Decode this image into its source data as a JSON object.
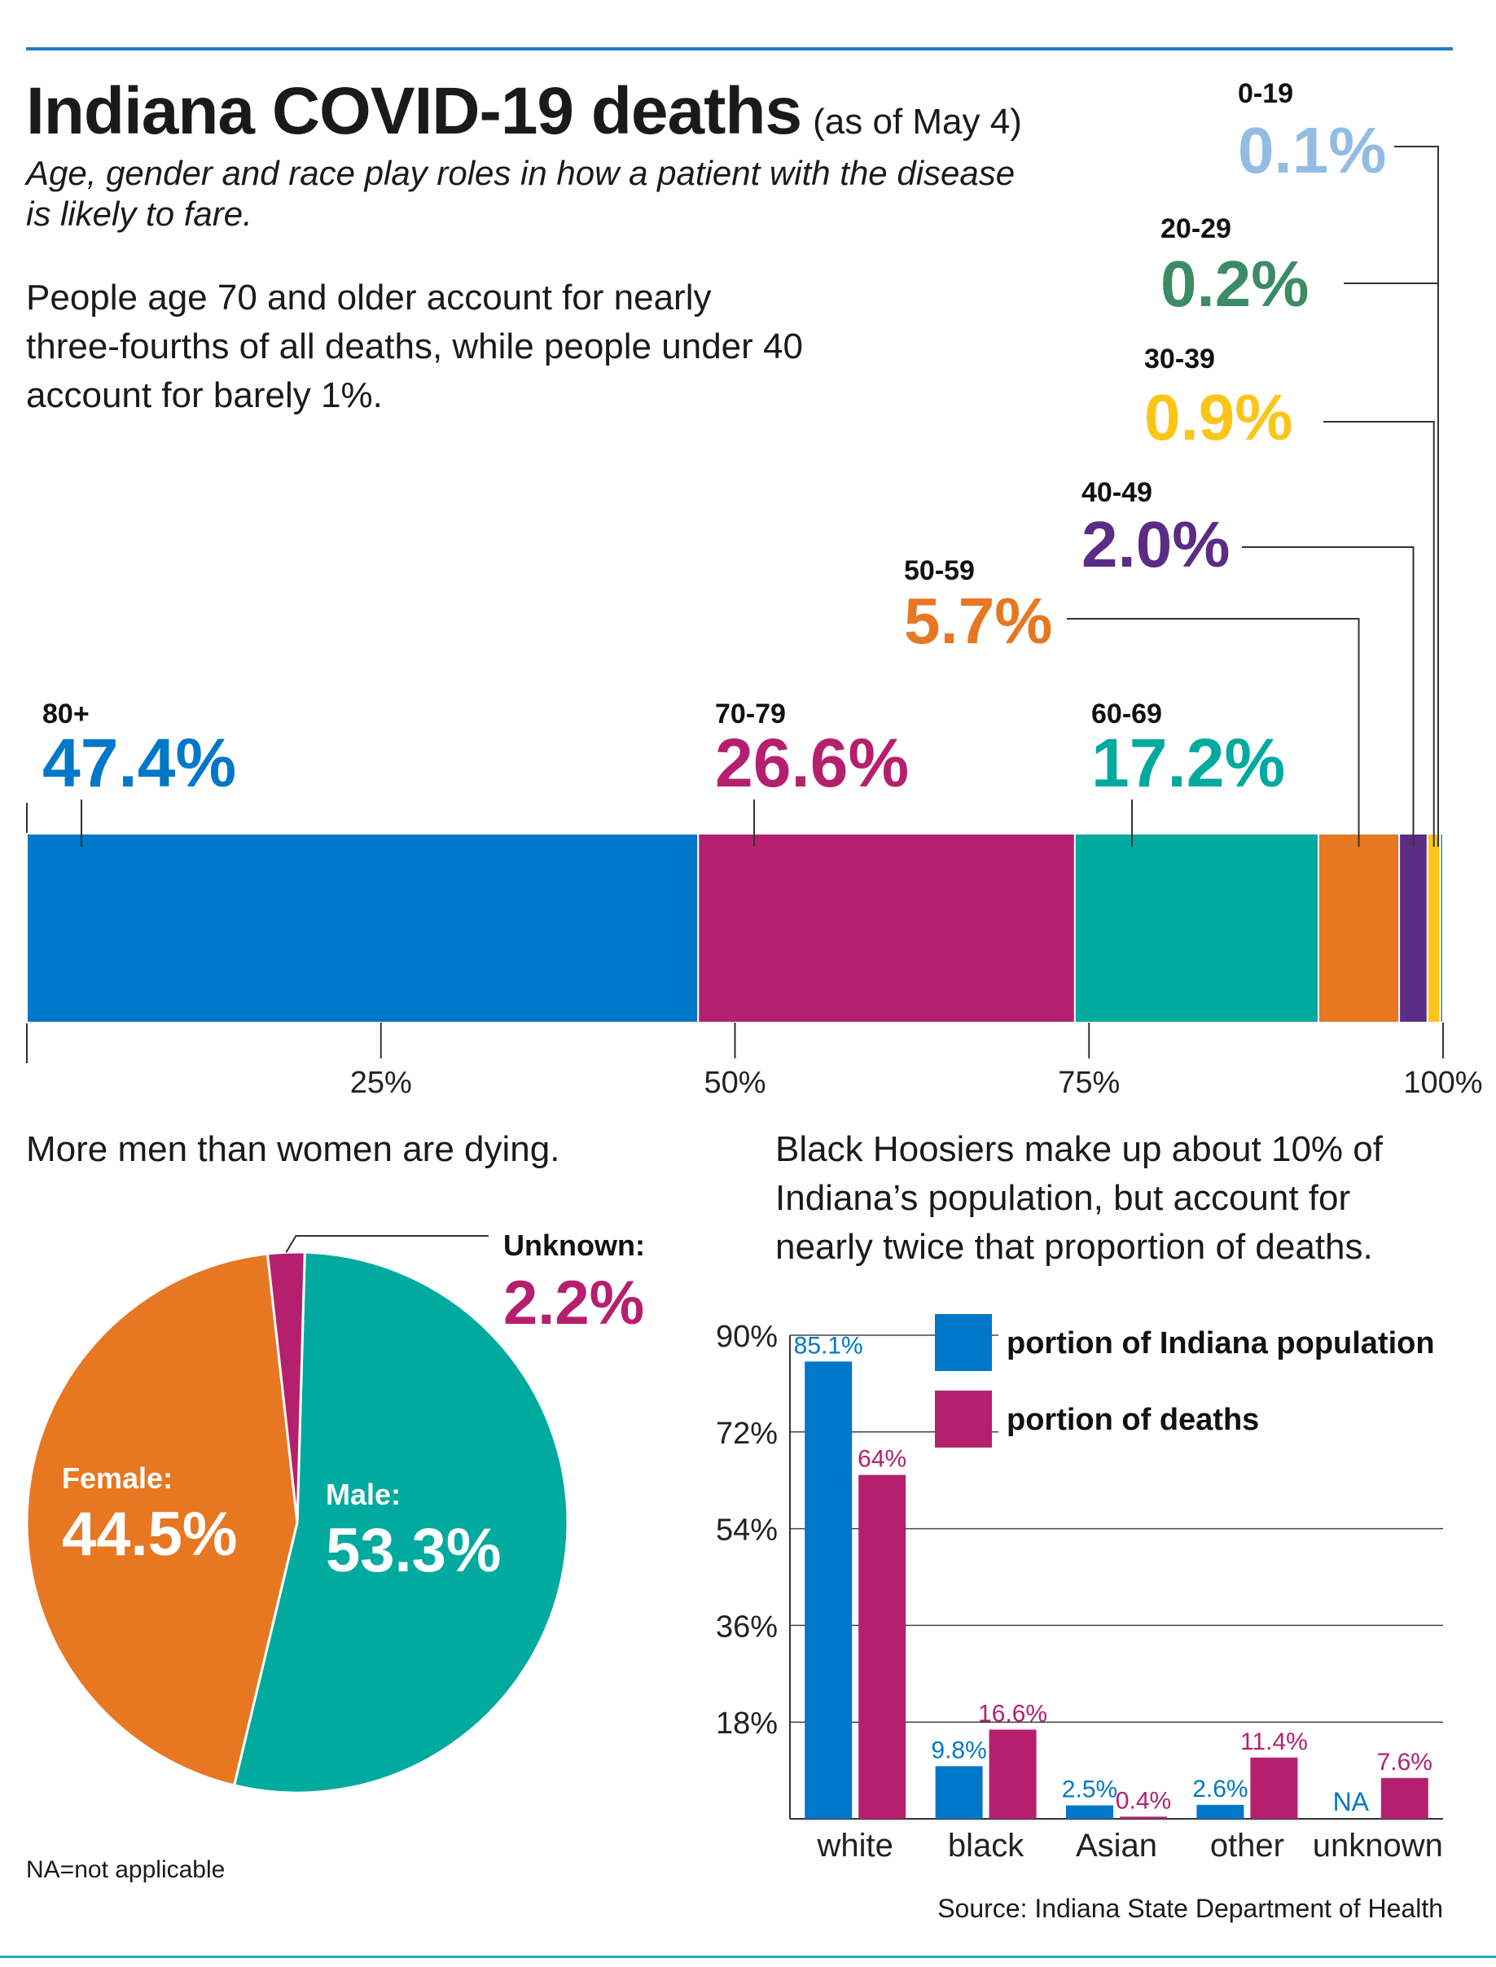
{
  "header": {
    "title": "Indiana COVID-19 deaths",
    "title_suffix": "(as of May 4)",
    "subtitle": "Age, gender and race play roles in how a patient with the disease is likely to fare."
  },
  "age_section": {
    "text": "People age 70 and older account for nearly three-fourths of all deaths, while people under 40 account for barely 1%."
  },
  "gender_section": {
    "text": "More men than women are dying."
  },
  "race_section": {
    "text": "Black Hoosiers make up about 10% of Indiana’s population, but account for nearly twice that proportion of deaths."
  },
  "footer": {
    "na_note": "NA=not applicable",
    "source": "Source: Indiana State Department of Health"
  },
  "chart_data": [
    {
      "type": "bar",
      "orientation": "horizontal-stacked",
      "segments": [
        {
          "label": "80+",
          "value": 47.4,
          "value_label": "47.4%",
          "color": "#0077c8"
        },
        {
          "label": "70-79",
          "value": 26.6,
          "value_label": "26.6%",
          "color": "#b5206e"
        },
        {
          "label": "60-69",
          "value": 17.2,
          "value_label": "17.2%",
          "color": "#00aa9f"
        },
        {
          "label": "50-59",
          "value": 5.7,
          "value_label": "5.7%",
          "color": "#e87722"
        },
        {
          "label": "40-49",
          "value": 2.0,
          "value_label": "2.0%",
          "color": "#5b2c83"
        },
        {
          "label": "30-39",
          "value": 0.9,
          "value_label": "0.9%",
          "color": "#fcc51a"
        },
        {
          "label": "20-29",
          "value": 0.2,
          "value_label": "0.2%",
          "color": "#3b8c66"
        },
        {
          "label": "0-19",
          "value": 0.1,
          "value_label": "0.1%",
          "color": "#92bce3"
        }
      ],
      "xlim": [
        0,
        100
      ],
      "x_ticks": [
        "25%",
        "50%",
        "75%",
        "100%"
      ],
      "x_tick_values": [
        25,
        50,
        75,
        100
      ]
    },
    {
      "type": "pie",
      "slices": [
        {
          "label": "Male:",
          "value": 53.3,
          "value_label": "53.3%",
          "color": "#00aa9f"
        },
        {
          "label": "Female:",
          "value": 44.5,
          "value_label": "44.5%",
          "color": "#e87722"
        },
        {
          "label": "Unknown:",
          "value": 2.2,
          "value_label": "2.2%",
          "color": "#b5206e"
        }
      ]
    },
    {
      "type": "bar",
      "categories": [
        "white",
        "black",
        "Asian",
        "other",
        "unknown"
      ],
      "series": [
        {
          "name": "portion of Indiana population",
          "color": "#0077c8",
          "values": [
            85.1,
            9.8,
            2.5,
            2.6,
            null
          ],
          "labels": [
            "85.1%",
            "9.8%",
            "2.5%",
            "2.6%",
            "NA"
          ]
        },
        {
          "name": "portion of deaths",
          "color": "#b5206e",
          "values": [
            64,
            16.6,
            0.4,
            11.4,
            7.6
          ],
          "labels": [
            "64%",
            "16.6%",
            "0.4%",
            "11.4%",
            "7.6%"
          ]
        }
      ],
      "ylim": [
        0,
        90
      ],
      "y_ticks": [
        "18%",
        "36%",
        "54%",
        "72%",
        "90%"
      ],
      "y_tick_values": [
        18,
        36,
        54,
        72,
        90
      ],
      "grid": true,
      "legend": "top-right"
    }
  ]
}
